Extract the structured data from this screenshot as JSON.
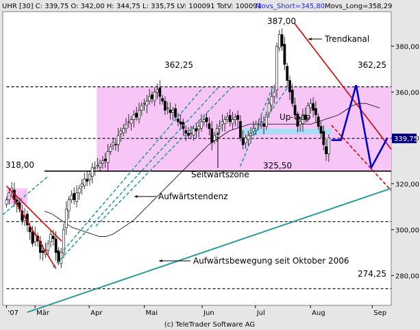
{
  "header": {
    "info": "UHR [30] C: 339,75 O: 342,00 H: 344,75 L: 335,75 LV: 100091 TotV: 100091",
    "ma_short": "Movs_Short=345,80",
    "ma_long": "Movs_Long=358,29"
  },
  "footer": "(c) TeleTrader Software AG",
  "colors": {
    "plot_bg": "#ffffff",
    "frame_bg": "#e6e6e6",
    "zone": "#f7c6f7",
    "gap": "#aadcf5",
    "channel": "#2a9a9a",
    "red": "#dd0000",
    "blue": "#0000cc",
    "candle_up": "#ffffff",
    "candle_down": "#000000",
    "current_price_bg": "#000080"
  },
  "annotations": {
    "high_387": "387,00",
    "trendkanal": "Trendkanal",
    "level_362_left": "362,25",
    "level_362_right": "362,25",
    "up_gap": "Up-Gap",
    "level_318": "318,00",
    "seitwaertszone": "Seitwärtszone",
    "level_325": "325,50",
    "aufwaertstendenz": "Aufwärtstendenz",
    "aufwaertsbewegung": "Aufwärtsbewegung seit Oktober 2006",
    "level_274": "274,25",
    "current_price": "339,75"
  },
  "chart_data": {
    "type": "candlestick",
    "x_ticks": [
      "'07",
      "Mär",
      "Apr",
      "Mai",
      "Jun",
      "Jul",
      "Aug",
      "Sep"
    ],
    "x_tick_positions": [
      0,
      30,
      87,
      145,
      206,
      262,
      320,
      385
    ],
    "y_ticks": [
      280,
      300,
      320,
      340,
      360,
      380
    ],
    "y_tick_labels": [
      "280,00",
      "300,00",
      "320,00",
      "340,00",
      "360,00",
      "380,00"
    ],
    "ylim": [
      267,
      395
    ],
    "xlim": [
      -4,
      405
    ],
    "horizontal_levels": [
      362.25,
      339.75,
      325.5,
      303.5,
      274.25
    ],
    "zone": {
      "x_from": 95,
      "x_to": 405,
      "y_from": 325.5,
      "y_to": 362.25
    },
    "box_318": {
      "x_from": 0,
      "x_to": 22,
      "y_from": 311,
      "y_to": 318
    },
    "gap": {
      "x_from": 245,
      "x_to": 342,
      "y_from": 341.5,
      "y_to": 344
    },
    "channel_lines": [
      {
        "from": [
          -4,
          306.5
        ],
        "to": [
          43,
          323
        ]
      },
      {
        "from": [
          49,
          283.5
        ],
        "to": [
          223,
          362
        ]
      },
      {
        "from": [
          60,
          291
        ],
        "to": [
          207,
          362
        ]
      },
      {
        "from": [
          94,
          301.5
        ],
        "to": [
          237,
          362
        ]
      },
      {
        "from": [
          246,
          327.5
        ],
        "to": [
          280,
          362
        ]
      },
      {
        "from": [
          260,
          341
        ],
        "to": [
          296,
          362
        ]
      }
    ],
    "long_trend": {
      "from": [
        22,
        264
      ],
      "to": [
        405,
        318
      ]
    },
    "red_lines": [
      {
        "from": [
          0,
          319
        ],
        "to": [
          58,
          295
        ],
        "dash": false
      },
      {
        "from": [
          5,
          315
        ],
        "to": [
          52,
          283
        ],
        "dash": false
      },
      {
        "from": [
          303,
          390
        ],
        "to": [
          405,
          335
        ],
        "dash": false
      },
      {
        "from": [
          342,
          345.5
        ],
        "to": [
          405,
          317
        ],
        "dash": true
      }
    ],
    "projection": [
      [
        342,
        339
      ],
      [
        352,
        339
      ],
      [
        368,
        363
      ],
      [
        384,
        327
      ],
      [
        401,
        340
      ]
    ],
    "close_series": [
      313,
      316,
      318,
      313,
      311,
      309,
      304,
      306,
      302,
      299,
      294,
      298,
      295,
      290,
      290,
      291,
      294,
      298,
      296,
      290,
      286,
      290,
      300,
      309,
      313,
      315,
      313,
      316,
      318,
      320,
      322,
      321,
      324,
      327,
      327,
      328,
      329,
      330,
      330,
      334,
      336,
      338,
      337,
      341,
      343,
      344,
      346,
      347,
      348,
      350,
      349,
      352,
      354,
      355,
      356,
      358,
      357,
      360,
      361,
      358,
      356,
      352,
      353,
      351,
      352,
      349,
      347,
      346,
      344,
      342,
      341,
      342,
      344,
      343,
      345,
      347,
      348,
      347,
      344,
      338,
      341,
      344,
      345,
      347,
      348,
      349,
      347,
      348,
      349,
      348,
      340,
      337,
      340,
      341,
      342,
      344,
      346,
      346,
      347,
      345,
      350,
      355,
      358,
      360,
      380,
      385,
      380,
      372,
      365,
      360,
      355,
      350,
      345,
      347,
      350,
      348,
      354,
      355,
      352,
      350,
      345,
      342,
      337,
      333,
      340
    ],
    "ma_long_series": [
      308,
      307,
      305,
      303,
      301,
      300,
      299,
      298,
      297,
      297,
      298,
      300,
      302,
      304,
      307,
      310,
      313,
      316,
      319,
      322,
      325,
      328,
      331,
      334,
      337,
      339,
      341,
      343,
      344,
      345,
      346,
      346,
      346,
      346,
      346,
      346,
      346,
      346,
      346,
      346,
      347,
      348,
      349,
      350,
      352,
      354,
      355,
      355,
      354,
      353
    ]
  }
}
